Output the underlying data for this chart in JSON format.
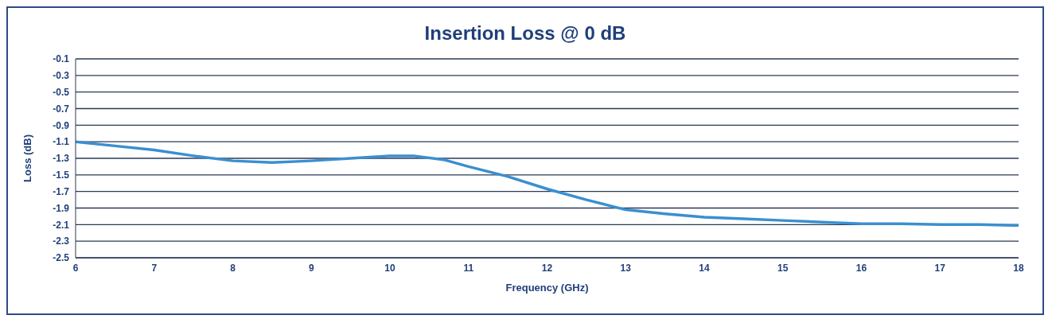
{
  "chart_data": {
    "type": "line",
    "title": "Insertion Loss @ 0 dB",
    "xlabel": "Frequency (GHz)",
    "ylabel": "Loss (dB)",
    "x": [
      6,
      6.5,
      7,
      7.5,
      8,
      8.5,
      9,
      9.5,
      10,
      10.3,
      10.7,
      11,
      11.5,
      12,
      12.5,
      13,
      13.5,
      14,
      14.5,
      15,
      15.5,
      16,
      16.5,
      17,
      17.5,
      18
    ],
    "series": [
      {
        "color": "#3a8fd0",
        "values": [
          -1.1,
          -1.15,
          -1.2,
          -1.27,
          -1.33,
          -1.35,
          -1.33,
          -1.3,
          -1.27,
          -1.27,
          -1.32,
          -1.4,
          -1.52,
          -1.67,
          -1.8,
          -1.92,
          -1.97,
          -2.01,
          -2.03,
          -2.05,
          -2.07,
          -2.09,
          -2.09,
          -2.1,
          -2.1,
          -2.11
        ]
      }
    ],
    "xlim": [
      6,
      18
    ],
    "xticks": [
      6,
      7,
      8,
      9,
      10,
      11,
      12,
      13,
      14,
      15,
      16,
      17,
      18
    ],
    "ylim": [
      -2.5,
      -0.1
    ],
    "yticks": [
      -2.5,
      -2.3,
      -2.1,
      -1.9,
      -1.7,
      -1.5,
      -1.3,
      -1.1,
      -0.9,
      -0.7,
      -0.5,
      -0.3,
      -0.1
    ],
    "grid": "y",
    "legend": false,
    "marker": "none",
    "line_style": "solid"
  }
}
